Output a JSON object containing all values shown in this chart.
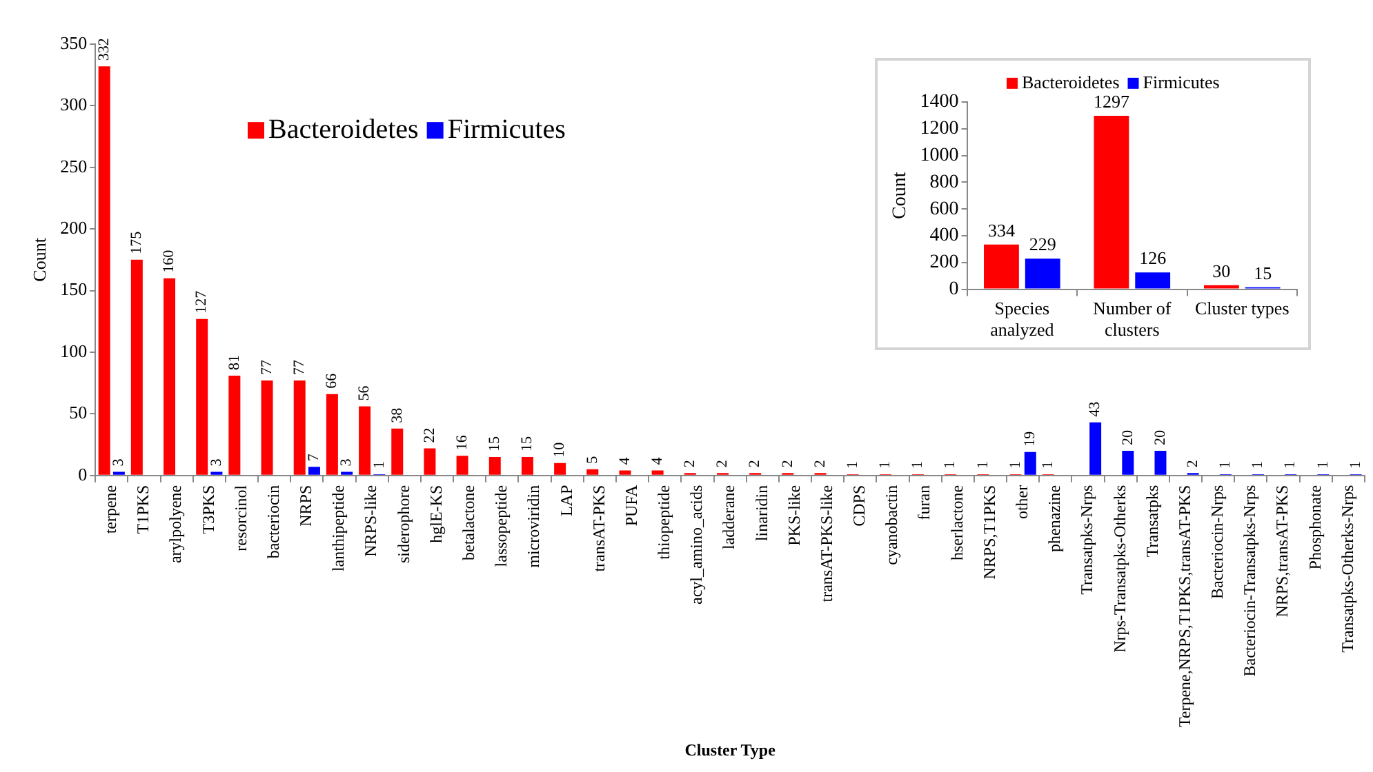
{
  "chart_data": [
    {
      "type": "bar",
      "xlabel": "Cluster Type",
      "ylabel": "Count",
      "legend": "top",
      "data_labels": true,
      "categories": [
        "terpene",
        "T1PKS",
        "arylpolyene",
        "T3PKS",
        "resorcinol",
        "bacteriocin",
        "NRPS",
        "lanthipeptide",
        "NRPS-like",
        "siderophore",
        "hglE-KS",
        "betalactone",
        "lassopeptide",
        "microviridin",
        "LAP",
        "transAT-PKS",
        "PUFA",
        "thiopeptide",
        "acyl_amino_acids",
        "ladderane",
        "linaridin",
        "PKS-like",
        "transAT-PKS-like",
        "CDPS",
        "cyanobactin",
        "furan",
        "hserlactone",
        "NRPS,T1PKS",
        "other",
        "phenazine",
        "Transatpks-Nrps",
        "Nrps-Transatpks-Otherks",
        "Transatpks",
        "Terpene,NRPS,T1PKS,transAT-PKS",
        "Bacteriocin-Nrps",
        "Bacteriocin-Transatpks-Nrps",
        "NRPS,transAT-PKS",
        "Phosphonate",
        "Transatpks-Otherks-Nrps"
      ],
      "series": [
        {
          "name": "Bacteroidetes",
          "color": "#ff0000",
          "values": [
            332,
            175,
            160,
            127,
            81,
            77,
            77,
            66,
            56,
            38,
            22,
            16,
            15,
            15,
            10,
            5,
            4,
            4,
            2,
            2,
            2,
            2,
            2,
            1,
            1,
            1,
            1,
            1,
            1,
            1,
            null,
            null,
            null,
            null,
            null,
            null,
            null,
            null,
            null
          ]
        },
        {
          "name": "Firmicutes",
          "color": "#0000ff",
          "values": [
            3,
            null,
            null,
            3,
            null,
            null,
            7,
            3,
            1,
            null,
            null,
            null,
            null,
            null,
            null,
            null,
            null,
            null,
            null,
            null,
            null,
            null,
            null,
            null,
            null,
            null,
            null,
            null,
            19,
            null,
            43,
            20,
            20,
            2,
            1,
            1,
            1,
            1,
            1
          ]
        }
      ],
      "ylim": [
        0,
        350
      ],
      "yticks": [
        0,
        50,
        100,
        150,
        200,
        250,
        300,
        350
      ]
    },
    {
      "type": "bar",
      "ylabel": "Count",
      "legend": "top",
      "data_labels": true,
      "categories": [
        "Species analyzed",
        "Number of clusters",
        "Cluster types"
      ],
      "series": [
        {
          "name": "Bacteroidetes",
          "color": "#ff0000",
          "values": [
            334,
            1297,
            30
          ]
        },
        {
          "name": "Firmicutes",
          "color": "#0000ff",
          "values": [
            229,
            126,
            15
          ]
        }
      ],
      "ylim": [
        0,
        1400
      ],
      "yticks": [
        0,
        200,
        400,
        600,
        800,
        1000,
        1200,
        1400
      ]
    }
  ]
}
